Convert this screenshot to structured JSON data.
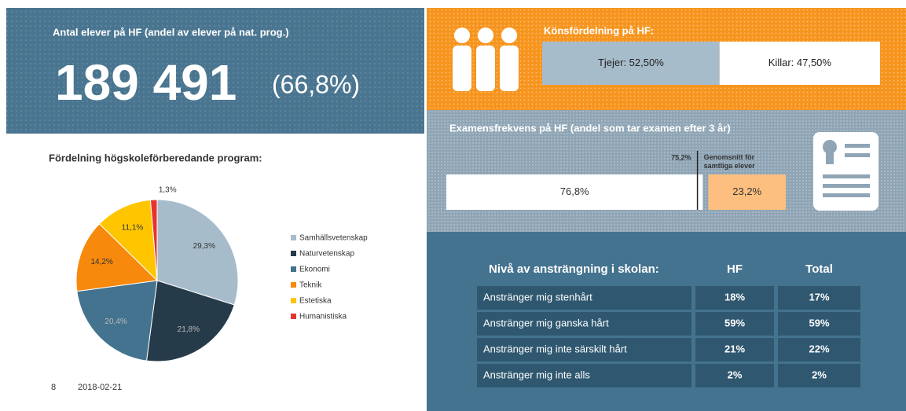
{
  "enrollment": {
    "title": "Antal elever på HF (andel av elever på nat. prog.)",
    "count": "189 491",
    "share": "(66,8%)"
  },
  "gender": {
    "title": "Könsfördelning på HF:",
    "segments": [
      {
        "value": 52.5,
        "label": "Tjejer: 52,50%",
        "color": "#a7bccb"
      },
      {
        "value": 47.5,
        "label": "Killar: 47,50%",
        "color": "#ffffff"
      }
    ]
  },
  "graduation": {
    "title": "Examensfrekvens på HF (andel som tar examen efter 3 år)",
    "segments": [
      {
        "value": 76.8,
        "label": "76,8%",
        "color": "#ffffff"
      },
      {
        "value": 23.2,
        "label": "23,2%",
        "color": "#fdbf7f"
      }
    ],
    "average": {
      "value": 75.2,
      "label": "75,2%",
      "caption": "Genomsnitt för samtliga elever"
    }
  },
  "chart_data": {
    "type": "pie",
    "title": "Fördelning högskoleförberedande program:",
    "categories": [
      "Samhällsvetenskap",
      "Naturvetenskap",
      "Ekonomi",
      "Teknik",
      "Estetiska",
      "Humanistiska"
    ],
    "values": [
      29.3,
      21.8,
      20.4,
      14.2,
      11.1,
      1.3
    ],
    "value_labels": [
      "29,3%",
      "21,8%",
      "20,4%",
      "14,2%",
      "11,1%",
      "1,3%"
    ],
    "colors": [
      "#a7bccb",
      "#263b4a",
      "#44738f",
      "#f7890c",
      "#ffc600",
      "#e8322b"
    ],
    "legend": "right"
  },
  "effort_table": {
    "header": [
      "Nivå av ansträngning i skolan:",
      "HF",
      "Total"
    ],
    "rows": [
      [
        "Anstränger mig stenhårt",
        "18%",
        "17%"
      ],
      [
        "Anstränger mig ganska hårt",
        "59%",
        "59%"
      ],
      [
        "Anstränger mig inte särskilt hårt",
        "21%",
        "22%"
      ],
      [
        "Anstränger mig inte alls",
        "2%",
        "2%"
      ]
    ]
  },
  "footer": {
    "page": "8",
    "date": "2018-02-21"
  }
}
